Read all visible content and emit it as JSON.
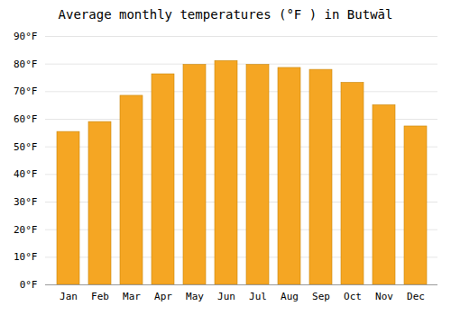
{
  "chart_data": {
    "type": "bar",
    "title": "Average monthly temperatures (°F ) in Butwāl",
    "categories": [
      "Jan",
      "Feb",
      "Mar",
      "Apr",
      "May",
      "Jun",
      "Jul",
      "Aug",
      "Sep",
      "Oct",
      "Nov",
      "Dec"
    ],
    "values": [
      55.4,
      59.0,
      68.5,
      76.3,
      79.7,
      81.1,
      79.7,
      78.6,
      77.9,
      73.2,
      65.1,
      57.4
    ],
    "color": "#F5A623",
    "ylim": [
      0,
      90
    ],
    "yticks": [
      {
        "value": 0,
        "label": "0°F"
      },
      {
        "value": 10,
        "label": "10°F"
      },
      {
        "value": 20,
        "label": "20°F"
      },
      {
        "value": 30,
        "label": "30°F"
      },
      {
        "value": 40,
        "label": "40°F"
      },
      {
        "value": 50,
        "label": "50°F"
      },
      {
        "value": 60,
        "label": "60°F"
      },
      {
        "value": 70,
        "label": "70°F"
      },
      {
        "value": 80,
        "label": "80°F"
      },
      {
        "value": 90,
        "label": "90°F"
      }
    ],
    "grid": true
  }
}
